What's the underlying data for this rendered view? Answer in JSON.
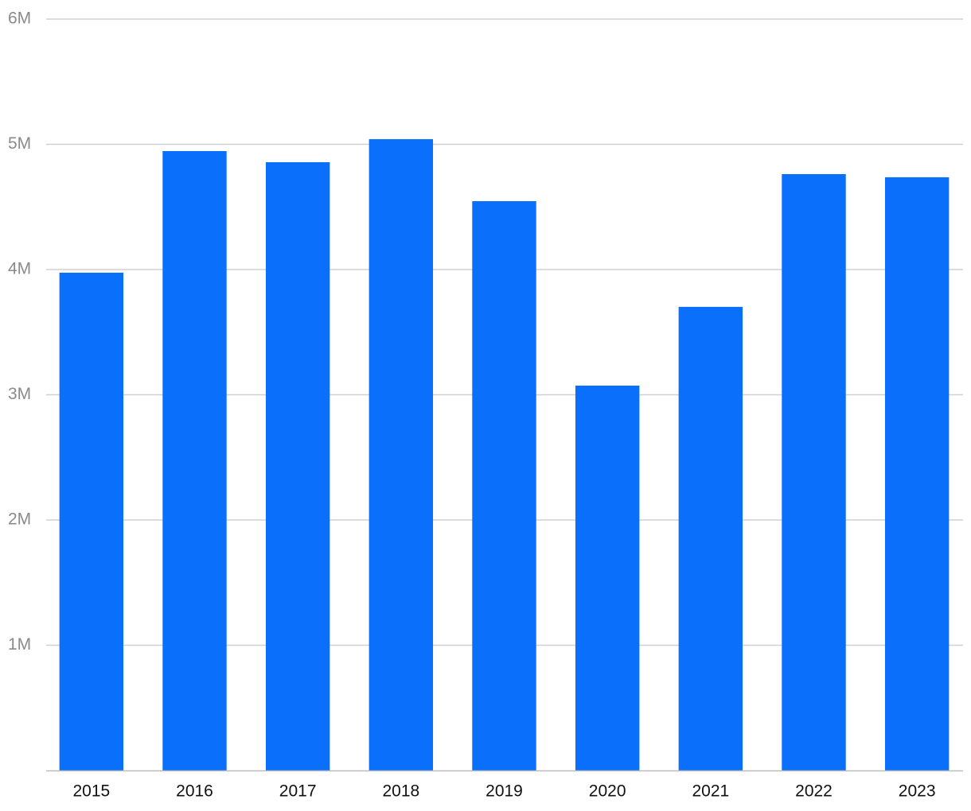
{
  "chart_data": {
    "type": "bar",
    "categories": [
      "2015",
      "2016",
      "2017",
      "2018",
      "2019",
      "2020",
      "2021",
      "2022",
      "2023"
    ],
    "values": [
      3975000,
      4946000,
      4857000,
      5041000,
      4546000,
      3073000,
      3702000,
      4762000,
      4737000
    ],
    "color": "#0a6ffb",
    "ylim": [
      0,
      6000000
    ],
    "yticks": [
      {
        "value": 1000000,
        "label": "1M"
      },
      {
        "value": 2000000,
        "label": "2M"
      },
      {
        "value": 3000000,
        "label": "3M"
      },
      {
        "value": 4000000,
        "label": "4M"
      },
      {
        "value": 5000000,
        "label": "5M"
      },
      {
        "value": 6000000,
        "label": "6M"
      }
    ],
    "grid": true
  }
}
